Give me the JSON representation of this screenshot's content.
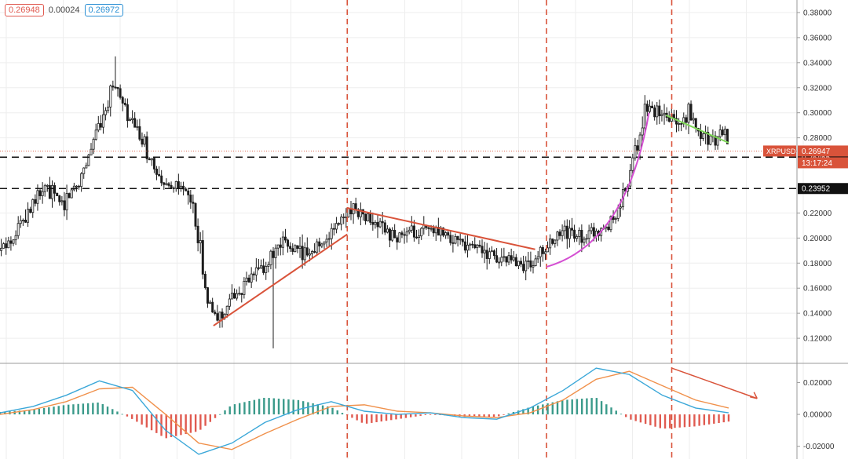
{
  "header": {
    "bid_price": "0.26948",
    "spread": "0.00024",
    "ask_price": "0.26972"
  },
  "colors": {
    "candle": "#1c1c1c",
    "red_trend": "#d9533a",
    "magenta_curve": "#d44fd2",
    "green_line": "#7ed957",
    "macd_line": "#3aa7d8",
    "signal_line": "#f0904a",
    "hist_pos": "#3a9a8a",
    "hist_neg": "#e05a50",
    "grid": "#eeeeee",
    "axis_text": "#333333"
  },
  "chart_data": [
    {
      "type": "candlestick",
      "symbol": "XRPUSD",
      "ylim": [
        0.1,
        0.39
      ],
      "y_ticks": [
        "0.38000",
        "0.36000",
        "0.34000",
        "0.32000",
        "0.30000",
        "0.28000",
        "0.22000",
        "0.20000",
        "0.18000",
        "0.16000",
        "0.14000",
        "0.12000"
      ],
      "last_price": "0.26947",
      "countdown": "13:17:24",
      "levels": [
        "0.26455",
        "0.23952"
      ],
      "level_values": [
        0.26455,
        0.23952
      ],
      "price_path": [
        [
          0.0,
          0.19
        ],
        [
          0.02,
          0.198
        ],
        [
          0.05,
          0.225
        ],
        [
          0.08,
          0.24
        ],
        [
          0.11,
          0.228
        ],
        [
          0.14,
          0.247
        ],
        [
          0.17,
          0.285
        ],
        [
          0.185,
          0.305
        ],
        [
          0.2,
          0.325
        ],
        [
          0.22,
          0.3
        ],
        [
          0.24,
          0.285
        ],
        [
          0.26,
          0.268
        ],
        [
          0.28,
          0.243
        ],
        [
          0.3,
          0.238
        ],
        [
          0.32,
          0.24
        ],
        [
          0.335,
          0.23
        ],
        [
          0.35,
          0.198
        ],
        [
          0.365,
          0.148
        ],
        [
          0.38,
          0.135
        ],
        [
          0.41,
          0.153
        ],
        [
          0.44,
          0.168
        ],
        [
          0.47,
          0.18
        ],
        [
          0.5,
          0.195
        ],
        [
          0.53,
          0.188
        ],
        [
          0.56,
          0.194
        ],
        [
          0.59,
          0.208
        ],
        [
          0.615,
          0.225
        ],
        [
          0.64,
          0.216
        ],
        [
          0.665,
          0.21
        ],
        [
          0.69,
          0.201
        ],
        [
          0.72,
          0.203
        ],
        [
          0.75,
          0.206
        ],
        [
          0.78,
          0.2
        ],
        [
          0.81,
          0.198
        ],
        [
          0.84,
          0.192
        ],
        [
          0.87,
          0.185
        ],
        [
          0.9,
          0.181
        ],
        [
          0.93,
          0.178
        ],
        [
          0.96,
          0.192
        ],
        [
          0.99,
          0.205
        ],
        [
          1.02,
          0.201
        ],
        [
          1.05,
          0.205
        ],
        [
          1.08,
          0.215
        ],
        [
          1.1,
          0.24
        ],
        [
          1.12,
          0.275
        ],
        [
          1.135,
          0.305
        ],
        [
          1.15,
          0.3
        ],
        [
          1.165,
          0.295
        ],
        [
          1.18,
          0.295
        ],
        [
          1.195,
          0.288
        ],
        [
          1.21,
          0.3
        ],
        [
          1.225,
          0.287
        ],
        [
          1.24,
          0.282
        ],
        [
          1.255,
          0.275
        ],
        [
          1.27,
          0.288
        ],
        [
          1.28,
          0.275
        ]
      ],
      "vertical_markers": [
        0.61,
        0.96,
        1.18
      ]
    },
    {
      "type": "line",
      "indicator": "MACD",
      "ylim": [
        -0.028,
        0.032
      ],
      "y_ticks": [
        "0.02000",
        "0.00000",
        "-0.02000"
      ],
      "series": [
        {
          "values": [
            0.001,
            0.005,
            0.012,
            0.021,
            0.015,
            -0.01,
            -0.025,
            -0.018,
            -0.005,
            0.003,
            0.008,
            0.002,
            0.0,
            0.001,
            -0.002,
            -0.003,
            0.004,
            0.015,
            0.029,
            0.025,
            0.012,
            0.004,
            0.001
          ]
        },
        {
          "values": [
            0.0,
            0.003,
            0.008,
            0.016,
            0.017,
            0.0,
            -0.018,
            -0.022,
            -0.012,
            -0.003,
            0.005,
            0.006,
            0.002,
            0.001,
            -0.001,
            -0.002,
            0.001,
            0.009,
            0.022,
            0.027,
            0.018,
            0.009,
            0.004
          ]
        }
      ]
    }
  ]
}
